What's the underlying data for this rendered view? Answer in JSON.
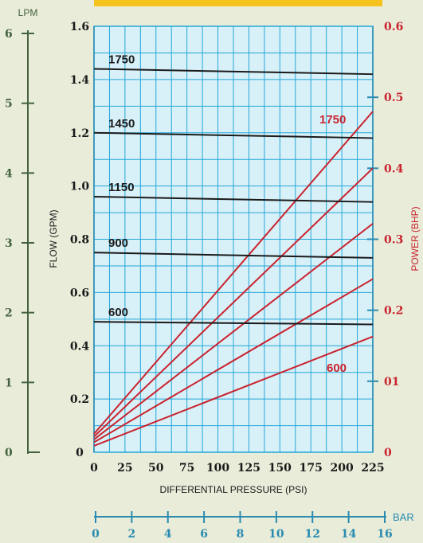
{
  "chart_data": {
    "type": "line",
    "xlabel": "DIFFERENTIAL PRESSURE  (PSI)",
    "ylabel_left": "FLOW  (GPM)",
    "ylabel_right": "POWER  (BHP)",
    "x_ticks": [
      0,
      25,
      50,
      75,
      100,
      125,
      150,
      175,
      200,
      225
    ],
    "xlim": [
      0,
      225
    ],
    "y_ticks": [
      0,
      0.2,
      0.4,
      0.6,
      0.8,
      1.0,
      1.2,
      1.4,
      1.6
    ],
    "y_tick_labels": [
      "0",
      "0.2",
      "0.4",
      "0.6",
      "0.8",
      "1.0",
      "1.2",
      "1.4",
      "1.6"
    ],
    "ylim": [
      0,
      1.6
    ],
    "power_ticks": [
      0,
      0.1,
      0.2,
      0.3,
      0.4,
      0.5,
      0.6
    ],
    "power_tick_labels": [
      "0",
      "01",
      "0.2",
      "0.3",
      "0.4",
      "0.5",
      "0.6"
    ],
    "power_lim": [
      0,
      0.6
    ],
    "lpm_axis": {
      "label": "LPM",
      "ticks": [
        0,
        1,
        2,
        3,
        4,
        5,
        6
      ]
    },
    "bar_axis": {
      "label": "BAR",
      "ticks": [
        0,
        2,
        4,
        6,
        8,
        10,
        12,
        14,
        16
      ]
    },
    "grid": true,
    "flow_series": [
      {
        "name": "1750",
        "x": [
          0,
          225
        ],
        "y": [
          1.44,
          1.42
        ]
      },
      {
        "name": "1450",
        "x": [
          0,
          225
        ],
        "y": [
          1.2,
          1.18
        ]
      },
      {
        "name": "1150",
        "x": [
          0,
          225
        ],
        "y": [
          0.96,
          0.94
        ]
      },
      {
        "name": "900",
        "x": [
          0,
          225
        ],
        "y": [
          0.75,
          0.73
        ]
      },
      {
        "name": "600",
        "x": [
          0,
          225
        ],
        "y": [
          0.49,
          0.48
        ]
      }
    ],
    "power_series": [
      {
        "name": "1750",
        "x": [
          0,
          225
        ],
        "y": [
          0.026,
          0.48
        ]
      },
      {
        "name": "",
        "x": [
          0,
          225
        ],
        "y": [
          0.022,
          0.4
        ]
      },
      {
        "name": "",
        "x": [
          0,
          225
        ],
        "y": [
          0.018,
          0.322
        ]
      },
      {
        "name": "",
        "x": [
          0,
          225
        ],
        "y": [
          0.014,
          0.244
        ]
      },
      {
        "name": "600",
        "x": [
          0,
          225
        ],
        "y": [
          0.009,
          0.163
        ]
      }
    ],
    "colors": {
      "background": "#e9ecd9",
      "plot_background": "#d8f0f8",
      "grid": "#23a7d8",
      "flow_lines": "#1a1a1a",
      "power_lines": "#c9232e",
      "lpm_axis": "#43623f",
      "bar_axis": "#2a8bb0",
      "top_bar": "#f5c21e"
    }
  }
}
